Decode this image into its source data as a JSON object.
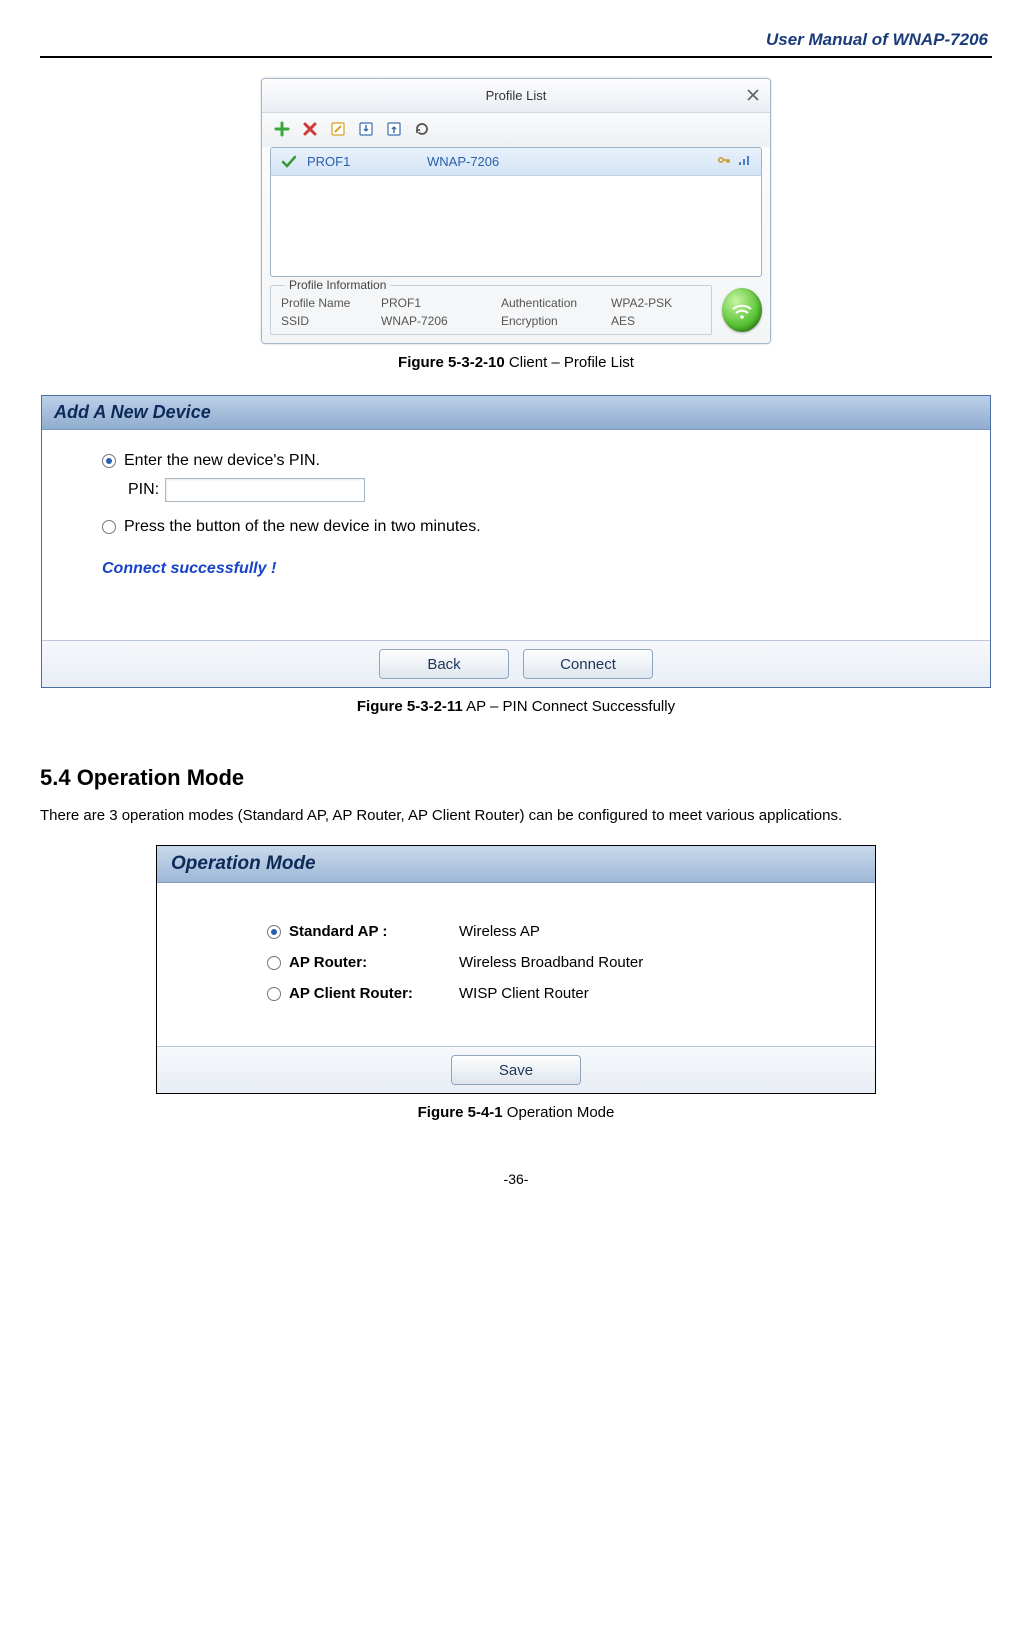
{
  "header": {
    "manual_title": "User Manual of WNAP-7206"
  },
  "fig1": {
    "title": "Profile List",
    "row": {
      "name": "PROF1",
      "ssid": "WNAP-7206"
    },
    "info_legend": "Profile Information",
    "info": {
      "l1": "Profile Name",
      "v1": "PROF1",
      "l2": "Authentication",
      "v2": "WPA2-PSK",
      "l3": "SSID",
      "v3": "WNAP-7206",
      "l4": "Encryption",
      "v4": "AES"
    },
    "caption_bold": "Figure 5-3-2-10",
    "caption_rest": " Client – Profile List",
    "icon_colors": {
      "add": "#3aa83a",
      "delete": "#d03a3a",
      "edit": "#d8a020",
      "import": "#3a6fb0",
      "export": "#3a6fb0",
      "refresh": "#555555",
      "check": "#3a9a3a",
      "key": "#c79a2a",
      "signal": "#4a7fd0"
    }
  },
  "fig2": {
    "header": "Add A New Device",
    "opt1": "Enter the new device's PIN.",
    "pin_label": "PIN:",
    "opt2": "Press the button of the new device in two minutes.",
    "success": "Connect successfully !",
    "btn_back": "Back",
    "btn_connect": "Connect",
    "caption_bold": "Figure 5-3-2-11",
    "caption_rest": " AP – PIN Connect Successfully",
    "colors": {
      "header_text": "#0d2a59",
      "success_text": "#1843c7"
    }
  },
  "section": {
    "heading": "5.4  Operation Mode",
    "text": "There are 3 operation modes (Standard AP, AP Router, AP Client Router) can be configured to meet various applications."
  },
  "fig3": {
    "header": "Operation Mode",
    "rows": [
      {
        "label": "Standard AP :",
        "desc": "Wireless AP",
        "checked": true
      },
      {
        "label": "AP Router:",
        "desc": "Wireless Broadband Router",
        "checked": false
      },
      {
        "label": "AP Client Router:",
        "desc": "WISP Client Router",
        "checked": false
      }
    ],
    "btn_save": "Save",
    "caption_bold": "Figure 5-4-1",
    "caption_rest": " Operation Mode"
  },
  "page_num": "-36-"
}
